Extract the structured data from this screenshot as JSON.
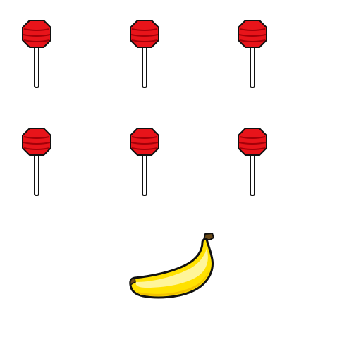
{
  "scene": {
    "items": [
      {
        "icon": "lollipop-icon",
        "row": 1,
        "col": 1
      },
      {
        "icon": "lollipop-icon",
        "row": 1,
        "col": 2
      },
      {
        "icon": "lollipop-icon",
        "row": 1,
        "col": 3
      },
      {
        "icon": "lollipop-icon",
        "row": 2,
        "col": 1
      },
      {
        "icon": "lollipop-icon",
        "row": 2,
        "col": 2
      },
      {
        "icon": "lollipop-icon",
        "row": 2,
        "col": 3
      },
      {
        "icon": "banana-icon",
        "row": 3,
        "col": 2
      }
    ],
    "colors": {
      "candy": "#e8141a",
      "candy_dark": "#a30008",
      "stick": "#ffffff",
      "outline": "#111111",
      "banana": "#ffe100",
      "banana_highlight": "#fff59a",
      "banana_shade": "#f2c200",
      "banana_stem": "#6b4a18",
      "background": "#ffffff"
    }
  }
}
